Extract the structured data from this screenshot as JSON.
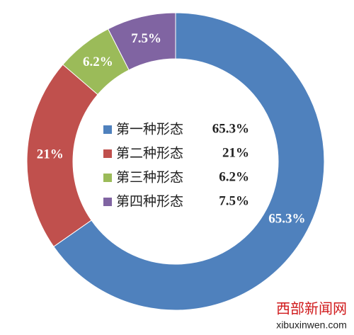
{
  "chart_data": {
    "type": "donut",
    "categories": [
      "第一种形态",
      "第二种形态",
      "第三种形态",
      "第四种形态"
    ],
    "values": [
      65.3,
      21,
      6.2,
      7.5
    ],
    "value_labels": [
      "65.3%",
      "21%",
      "6.2%",
      "7.5%"
    ],
    "colors": [
      "#4f81bd",
      "#c0504d",
      "#9bbb59",
      "#8064a2"
    ],
    "legend": "center"
  },
  "watermark": {
    "name": "西部新闻网",
    "url": "xibuxinwen.com"
  }
}
